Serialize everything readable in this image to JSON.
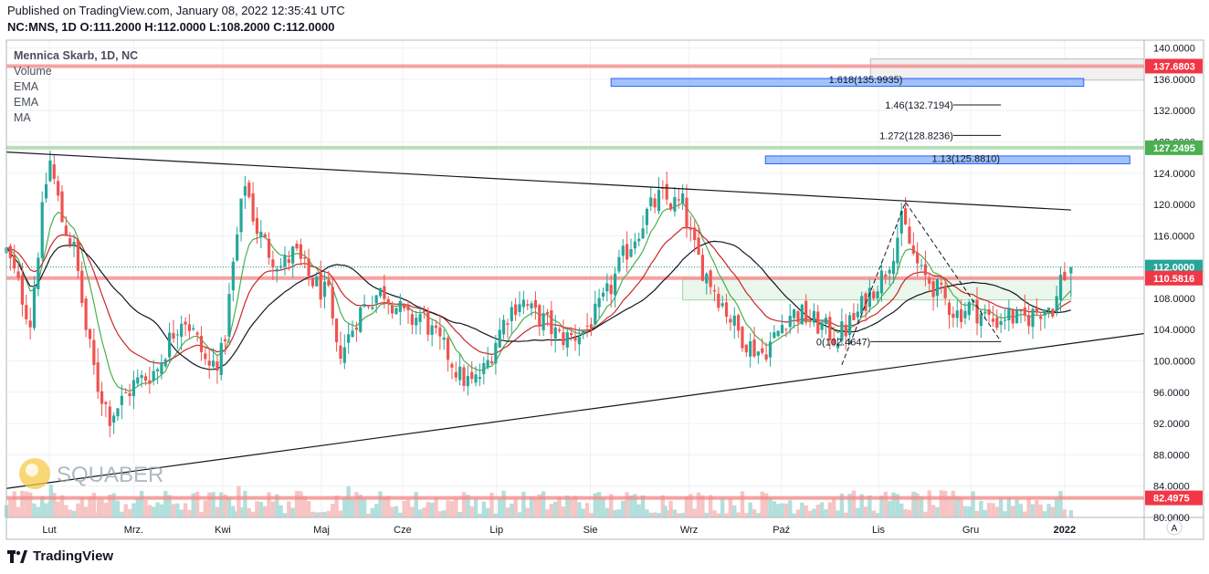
{
  "header": {
    "published": "Published on TradingView.com, January 08, 2022 12:35:41 UTC",
    "ohlc": "NC:MNS, 1D  O:111.2000  H:112.0000  L:108.2000  C:112.0000"
  },
  "legend": {
    "title": "Mennica Skarb, 1D, NC",
    "items": [
      "Volume",
      "EMA",
      "EMA",
      "MA"
    ]
  },
  "watermark": "SQUABER",
  "footer": {
    "brand": "TradingView"
  },
  "auto_scale_label": "A",
  "colors": {
    "up": "#26a69a",
    "down": "#ef5350",
    "vol_up": "#b2dfdb",
    "vol_down": "#f7c4c4",
    "ema_fast": "#4caf50",
    "ema_slow": "#c62828",
    "ma": "#131722",
    "resistance": "#f28b8b",
    "support_green": "#a5d6a7",
    "fib_box": "#90b8f8"
  },
  "chart_data": {
    "type": "candlestick",
    "title": "Mennica Skarb, 1D, NC",
    "symbol": "NC:MNS",
    "timeframe": "1D",
    "ohlc_last": {
      "open": 111.2,
      "high": 112.0,
      "low": 108.2,
      "close": 112.0
    },
    "y_axis": {
      "range": [
        80,
        141
      ],
      "ticks": [
        "140.0000",
        "136.0000",
        "132.0000",
        "128.0000",
        "124.0000",
        "120.0000",
        "116.0000",
        "112.0000",
        "108.0000",
        "104.0000",
        "100.0000",
        "96.0000",
        "92.0000",
        "88.0000",
        "84.0000",
        "80.0000"
      ],
      "tick_values": [
        140,
        136,
        132,
        128,
        124,
        120,
        116,
        112,
        108,
        104,
        100,
        96,
        92,
        88,
        84,
        80
      ]
    },
    "x_axis": {
      "labels": [
        "Lut",
        "Mrz.",
        "Kwi",
        "Maj",
        "Cze",
        "Lip",
        "Sie",
        "Wrz",
        "Paź",
        "Lis",
        "Gru",
        "2022"
      ],
      "label_days": [
        32,
        85,
        141,
        203,
        254,
        313,
        372,
        434,
        492,
        553,
        611,
        670
      ],
      "range_days": [
        5,
        720
      ],
      "last_day": 674
    },
    "price_labels": [
      {
        "text": "137.6803",
        "value": 137.6803,
        "color": "#f23645"
      },
      {
        "text": "127.2495",
        "value": 127.2495,
        "color": "#4caf50"
      },
      {
        "text": "112.0000",
        "value": 112.0,
        "color": "#26a69a"
      },
      {
        "text": "110.5816",
        "value": 110.5816,
        "color": "#f23645"
      },
      {
        "text": "82.4975",
        "value": 82.4975,
        "color": "#f23645"
      }
    ],
    "horizontal_levels": [
      {
        "value": 137.6803,
        "color": "#f28b8b"
      },
      {
        "value": 127.2495,
        "color": "#a5d6a7"
      },
      {
        "value": 110.5816,
        "color": "#f28b8b"
      },
      {
        "value": 82.4975,
        "color": "#f28b8b"
      }
    ],
    "current_price_line": 112.0,
    "support_zone": {
      "from_day": 430,
      "to_day": 674,
      "low": 107.8,
      "high": 110.5
    },
    "trendlines": [
      {
        "from": [
          5,
          126.7
        ],
        "to": [
          674,
          119.3
        ]
      },
      {
        "from": [
          5,
          83.7
        ],
        "to": [
          720,
          103.5
        ]
      }
    ],
    "fib_extension": {
      "points": [
        [
          530,
          99.5
        ],
        [
          570,
          120.3
        ],
        [
          630,
          102.5
        ]
      ],
      "levels": [
        {
          "label": "1.618(135.9935)",
          "value": 136.0,
          "zone": [
            385,
            682,
            135.1,
            136.1
          ]
        },
        {
          "label": "1.46(132.7194)",
          "value": 132.7194
        },
        {
          "label": "1.272(128.8236)",
          "value": 128.8236
        },
        {
          "label": "1.13(125.8810)",
          "value": 125.881,
          "zone": [
            482,
            711,
            125.2,
            126.2
          ]
        },
        {
          "label": "0(102.4647)",
          "value": 102.4647
        }
      ],
      "grey_zone": [
        548,
        720,
        135.9,
        138.6
      ]
    },
    "series": [
      {
        "name": "EMA",
        "kind": "ema_fast"
      },
      {
        "name": "EMA",
        "kind": "ema_slow"
      },
      {
        "name": "MA",
        "kind": "ma"
      },
      {
        "name": "Volume",
        "kind": "volume"
      }
    ],
    "price_path": [
      [
        5,
        114
      ],
      [
        12,
        110
      ],
      [
        20,
        105
      ],
      [
        27,
        118
      ],
      [
        32,
        126
      ],
      [
        40,
        118
      ],
      [
        48,
        114
      ],
      [
        55,
        104
      ],
      [
        62,
        97
      ],
      [
        70,
        93
      ],
      [
        78,
        95
      ],
      [
        85,
        97
      ],
      [
        93,
        98
      ],
      [
        100,
        99
      ],
      [
        108,
        103
      ],
      [
        116,
        106
      ],
      [
        124,
        103
      ],
      [
        132,
        99
      ],
      [
        141,
        101
      ],
      [
        148,
        113
      ],
      [
        155,
        123
      ],
      [
        162,
        117
      ],
      [
        170,
        114
      ],
      [
        178,
        112
      ],
      [
        186,
        114
      ],
      [
        194,
        111
      ],
      [
        203,
        109
      ],
      [
        208,
        108
      ],
      [
        212,
        101
      ],
      [
        218,
        102
      ],
      [
        226,
        106
      ],
      [
        234,
        108
      ],
      [
        242,
        109
      ],
      [
        250,
        107
      ],
      [
        258,
        105
      ],
      [
        266,
        106
      ],
      [
        274,
        103
      ],
      [
        282,
        101
      ],
      [
        290,
        98
      ],
      [
        298,
        97
      ],
      [
        306,
        99
      ],
      [
        313,
        103
      ],
      [
        320,
        106
      ],
      [
        328,
        108
      ],
      [
        336,
        106
      ],
      [
        344,
        105
      ],
      [
        352,
        103
      ],
      [
        360,
        103
      ],
      [
        368,
        104
      ],
      [
        376,
        106
      ],
      [
        384,
        109
      ],
      [
        392,
        113
      ],
      [
        400,
        116
      ],
      [
        408,
        119
      ],
      [
        416,
        121
      ],
      [
        424,
        120
      ],
      [
        430,
        120
      ],
      [
        436,
        115
      ],
      [
        442,
        112
      ],
      [
        448,
        110
      ],
      [
        456,
        107
      ],
      [
        464,
        104
      ],
      [
        472,
        102
      ],
      [
        480,
        101
      ],
      [
        488,
        103
      ],
      [
        496,
        106
      ],
      [
        504,
        106
      ],
      [
        512,
        105
      ],
      [
        520,
        104
      ],
      [
        526,
        103
      ],
      [
        532,
        104
      ],
      [
        540,
        106
      ],
      [
        548,
        109
      ],
      [
        556,
        111
      ],
      [
        562,
        114
      ],
      [
        568,
        118
      ],
      [
        574,
        114
      ],
      [
        580,
        111
      ],
      [
        586,
        110
      ],
      [
        594,
        108
      ],
      [
        602,
        106
      ],
      [
        610,
        107
      ],
      [
        618,
        106
      ],
      [
        626,
        105
      ],
      [
        634,
        106
      ],
      [
        642,
        105
      ],
      [
        650,
        106
      ],
      [
        658,
        107
      ],
      [
        664,
        107
      ],
      [
        668,
        111
      ],
      [
        672,
        111
      ],
      [
        674,
        112
      ]
    ],
    "volume_spikes": [
      {
        "day": 33,
        "value": 84.2,
        "up": true
      },
      {
        "day": 63,
        "value": 82.4,
        "up": false
      },
      {
        "day": 151,
        "value": 84.0,
        "up": false
      },
      {
        "day": 165,
        "value": 82.0,
        "up": true
      },
      {
        "day": 220,
        "value": 84.0,
        "up": true
      },
      {
        "day": 419,
        "value": 81.5,
        "up": true
      },
      {
        "day": 576,
        "value": 83.2,
        "up": true
      }
    ]
  }
}
